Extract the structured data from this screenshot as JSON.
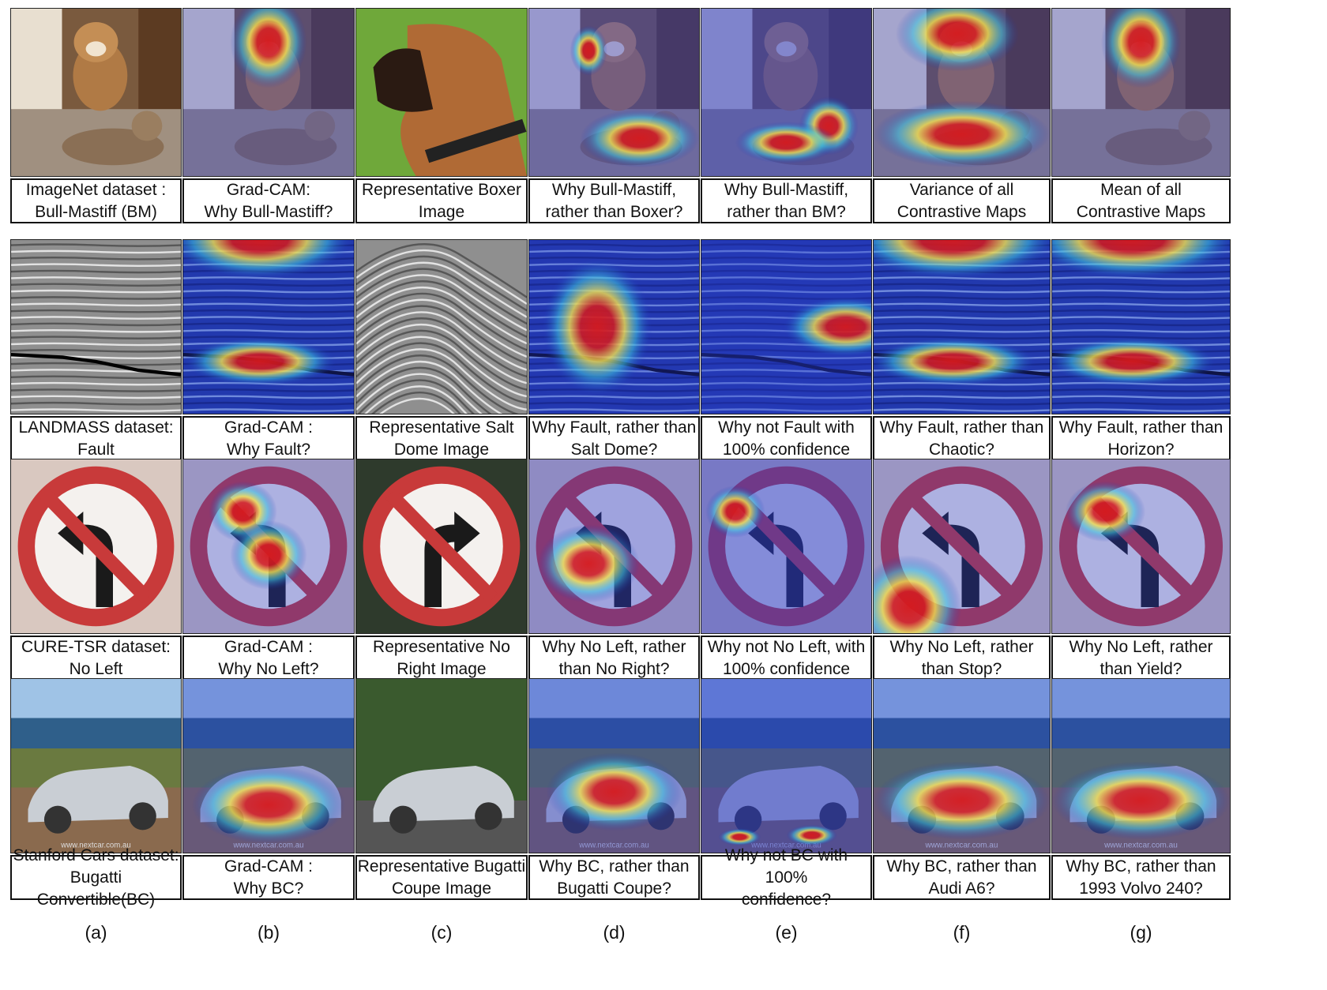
{
  "rows": [
    {
      "name": "imagenet",
      "theme": "dog",
      "captions": [
        "ImageNet dataset :\nBull-Mastiff (BM)",
        "Grad-CAM:\nWhy Bull-Mastiff?",
        "Representative Boxer\nImage",
        "Why Bull-Mastiff,\nrather than Boxer?",
        "Why Bull-Mastiff,\nrather than BM?",
        "Variance of all\nContrastive Maps",
        "Mean of all\nContrastive Maps"
      ]
    },
    {
      "name": "landmass",
      "theme": "seismic",
      "captions": [
        "LANDMASS dataset:\nFault",
        "Grad-CAM :\nWhy Fault?",
        "Representative Salt\nDome Image",
        "Why Fault, rather than\nSalt Dome?",
        "Why not Fault with\n100% confidence",
        "Why Fault, rather than\nChaotic?",
        "Why Fault, rather than\nHorizon?"
      ]
    },
    {
      "name": "cure-tsr",
      "theme": "sign",
      "captions": [
        "CURE-TSR dataset:\nNo Left",
        "Grad-CAM :\nWhy No Left?",
        "Representative No\nRight Image",
        "Why No Left, rather\nthan No Right?",
        "Why not No Left, with\n100% confidence",
        "Why No Left, rather\nthan Stop?",
        "Why No Left, rather\nthan Yield?"
      ]
    },
    {
      "name": "stanford-cars",
      "theme": "car",
      "watermark": "www.nextcar.com.au",
      "captions": [
        "Stanford Cars dataset:\nBugatti Convertible(BC)",
        "Grad-CAM :\nWhy BC?",
        "Representative Bugatti\nCoupe Image",
        "Why BC, rather than\nBugatti Coupe?",
        "Why not BC with 100%\nconfidence?",
        "Why BC, rather than\nAudi A6?",
        "Why BC, rather than\n1993 Volvo 240?"
      ]
    }
  ],
  "column_labels": [
    "(a)",
    "(b)",
    "(c)",
    "(d)",
    "(e)",
    "(f)",
    "(g)"
  ],
  "colors": {
    "heat_red": "#d7191c",
    "heat_yellow": "#f4e04d",
    "heat_cyan": "#3ec7e0",
    "heat_blue": "#1b2fb5",
    "overlay_blue": "#2838c8",
    "sign_red": "#c83a3a"
  }
}
